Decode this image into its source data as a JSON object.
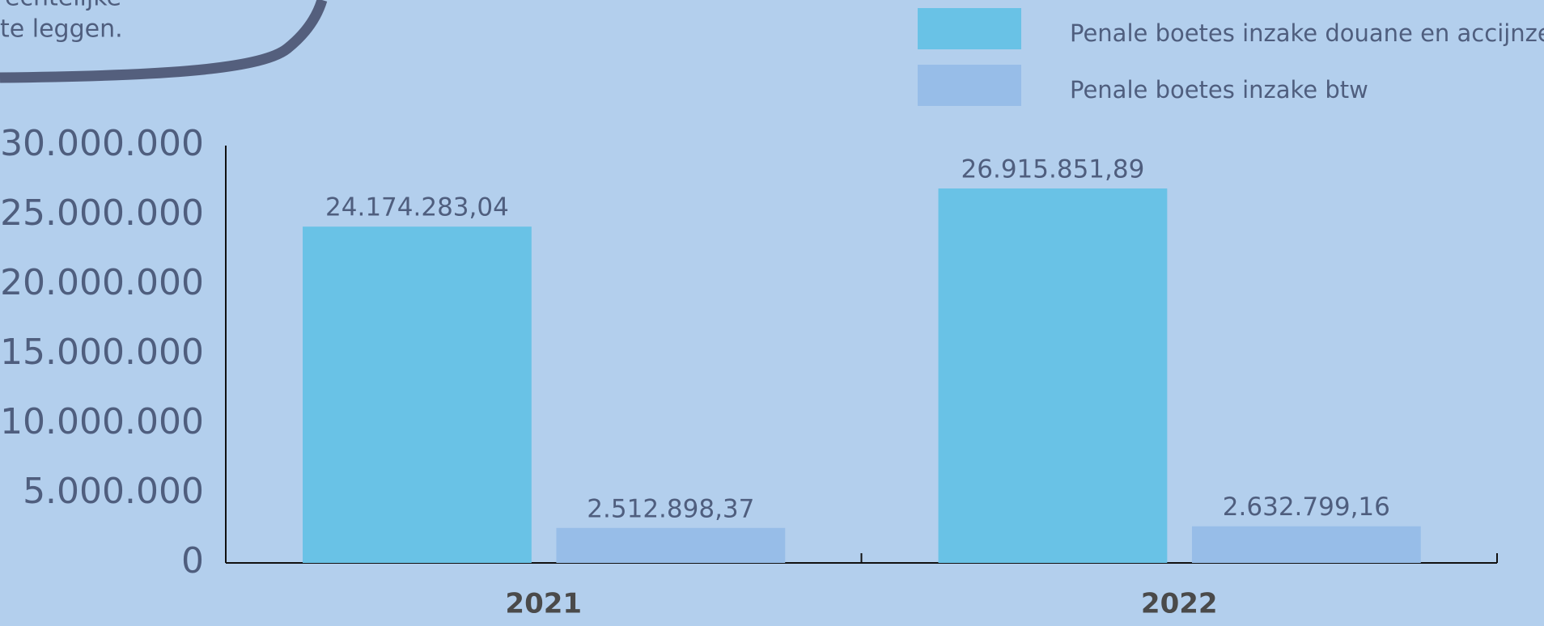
{
  "callout": {
    "lines": [
      "om strafrechtelijke",
      "te leggen."
    ]
  },
  "chart_data": {
    "type": "bar",
    "categories": [
      "2021",
      "2022"
    ],
    "series": [
      {
        "name": "Penale boetes inzake douane en accijnzen",
        "color": "#69c2e6",
        "values": [
          24174283.04,
          26915851.89
        ],
        "value_labels": [
          "24.174.283,04",
          "26.915.851,89"
        ]
      },
      {
        "name": "Penale boetes inzake btw",
        "color": "#97bde8",
        "values": [
          2512898.37,
          2632799.16
        ],
        "value_labels": [
          "2.512.898,37",
          "2.632.799,16"
        ]
      }
    ],
    "ylim": [
      0,
      30000000
    ],
    "yticks": [
      0,
      {
        "value": 5000000,
        "label": "5.000.000"
      },
      {
        "value": 10000000,
        "label": "10.000.000"
      },
      {
        "value": 15000000,
        "label": "15.000.000"
      },
      {
        "value": 20000000,
        "label": "20.000.000"
      },
      {
        "value": 25000000,
        "label": "25.000.000"
      },
      {
        "value": 30000000,
        "label": "30.000.000"
      }
    ],
    "grid": false,
    "legend": "top-right"
  }
}
